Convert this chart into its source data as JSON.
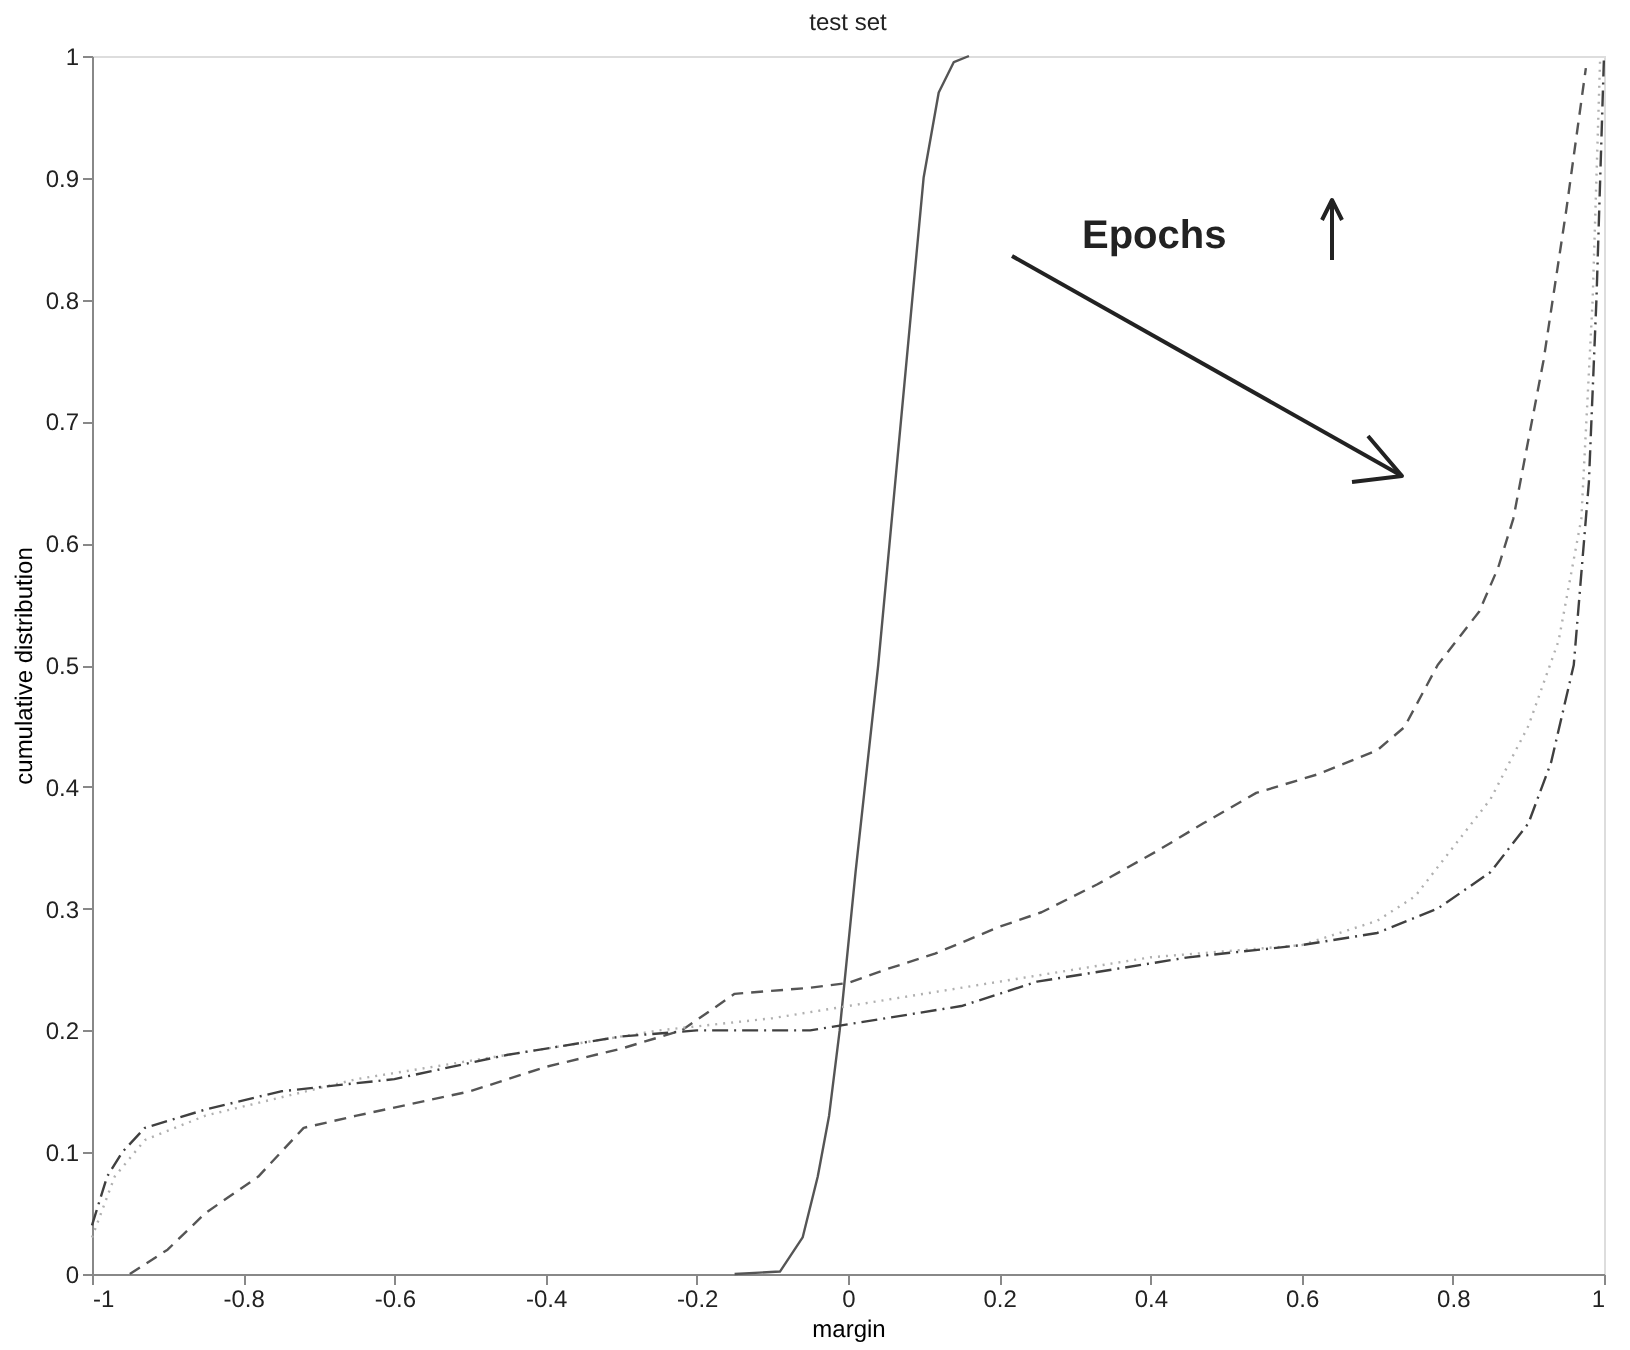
{
  "chart_data": {
    "type": "line",
    "title": "test set",
    "xlabel": "margin",
    "ylabel": "cumulative distribution",
    "xlim": [
      -1,
      1
    ],
    "xticks": [
      -1,
      -0.8,
      -0.6,
      -0.4,
      -0.2,
      0,
      0.2,
      0.4,
      0.6,
      0.8,
      1
    ],
    "ylim": [
      0,
      1
    ],
    "yticks": [
      0,
      0.1,
      0.2,
      0.3,
      0.4,
      0.5,
      0.6,
      0.7,
      0.8,
      0.9,
      1
    ],
    "grid": false,
    "legend": false,
    "marker": "none",
    "annotations": [
      "Epochs"
    ],
    "series": [
      {
        "color": "#555555",
        "line_style": "solid",
        "x": [
          -0.15,
          -0.09,
          -0.06,
          -0.04,
          -0.025,
          -0.011,
          0.01,
          0.04,
          0.07,
          0.1,
          0.12,
          0.14,
          0.16
        ],
        "values": [
          0,
          0.002,
          0.03,
          0.08,
          0.13,
          0.2,
          0.33,
          0.5,
          0.7,
          0.9,
          0.97,
          0.995,
          1
        ]
      },
      {
        "color": "#555555",
        "line_style": "dashed",
        "x": [
          -0.95,
          -0.9,
          -0.85,
          -0.78,
          -0.72,
          -0.65,
          -0.5,
          -0.4,
          -0.3,
          -0.22,
          -0.15,
          -0.05,
          0,
          0.05,
          0.115,
          0.2,
          0.256,
          0.33,
          0.408,
          0.47,
          0.54,
          0.62,
          0.7,
          0.736,
          0.78,
          0.835,
          0.86,
          0.88,
          0.92,
          0.95,
          0.976
        ],
        "values": [
          0,
          0.02,
          0.05,
          0.08,
          0.12,
          0.13,
          0.15,
          0.17,
          0.185,
          0.2,
          0.23,
          0.235,
          0.239,
          0.25,
          0.263,
          0.285,
          0.297,
          0.32,
          0.347,
          0.37,
          0.395,
          0.41,
          0.43,
          0.449,
          0.5,
          0.544,
          0.58,
          0.62,
          0.75,
          0.873,
          0.99
        ]
      },
      {
        "color": "#b0b0b0",
        "line_style": "dotted",
        "x": [
          -1,
          -0.97,
          -0.93,
          -0.85,
          -0.75,
          -0.65,
          -0.45,
          -0.25,
          -0.1,
          0,
          0.1,
          0.2,
          0.3,
          0.4,
          0.5,
          0.6,
          0.7,
          0.75,
          0.8,
          0.85,
          0.9,
          0.94,
          0.97,
          0.985,
          0.995
        ],
        "values": [
          0.03,
          0.08,
          0.11,
          0.13,
          0.145,
          0.16,
          0.18,
          0.2,
          0.21,
          0.22,
          0.23,
          0.24,
          0.25,
          0.26,
          0.265,
          0.27,
          0.29,
          0.31,
          0.35,
          0.39,
          0.45,
          0.52,
          0.62,
          0.8,
          1
        ]
      },
      {
        "color": "#404040",
        "line_style": "dashdot",
        "x": [
          -1,
          -0.98,
          -0.96,
          -0.93,
          -0.85,
          -0.75,
          -0.6,
          -0.45,
          -0.3,
          -0.2,
          -0.05,
          0,
          0.05,
          0.15,
          0.25,
          0.35,
          0.45,
          0.6,
          0.7,
          0.78,
          0.85,
          0.9,
          0.93,
          0.96,
          0.98,
          0.99,
          1
        ],
        "values": [
          0.04,
          0.08,
          0.1,
          0.12,
          0.135,
          0.15,
          0.16,
          0.18,
          0.195,
          0.2,
          0.2,
          0.205,
          0.21,
          0.22,
          0.24,
          0.25,
          0.26,
          0.27,
          0.28,
          0.3,
          0.33,
          0.37,
          0.42,
          0.5,
          0.65,
          0.8,
          1
        ]
      }
    ]
  }
}
